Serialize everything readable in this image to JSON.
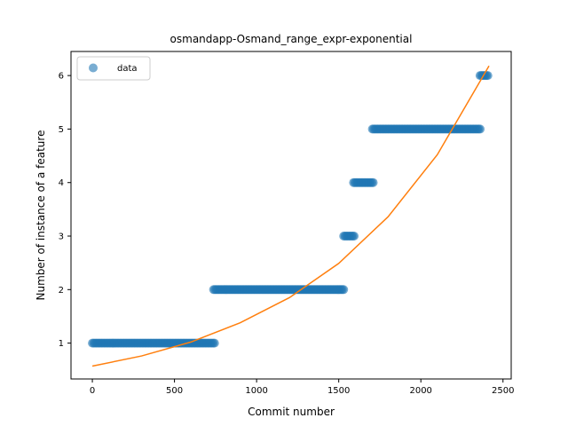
{
  "chart_data": {
    "type": "scatter",
    "title": "osmandapp-Osmand_range_expr-exponential",
    "xlabel": "Commit number",
    "ylabel": "Number of instance of a feature",
    "xlim": [
      -130,
      2550
    ],
    "ylim": [
      0.33,
      6.45
    ],
    "xticks": [
      0,
      500,
      1000,
      1500,
      2000,
      2500
    ],
    "yticks": [
      1,
      2,
      3,
      4,
      5,
      6
    ],
    "grid": false,
    "legend": {
      "entries": [
        "data"
      ],
      "placement": "top-left"
    },
    "colors": {
      "data": "#1f77b4",
      "fit": "#ff7f0e"
    },
    "series": [
      {
        "name": "data",
        "kind": "scatter",
        "segments": [
          {
            "x_start": 0,
            "x_end": 745,
            "y": 1
          },
          {
            "x_start": 738,
            "x_end": 1535,
            "y": 2
          },
          {
            "x_start": 1530,
            "x_end": 1595,
            "y": 3
          },
          {
            "x_start": 1590,
            "x_end": 1710,
            "y": 4
          },
          {
            "x_start": 1705,
            "x_end": 2365,
            "y": 5
          },
          {
            "x_start": 2360,
            "x_end": 2415,
            "y": 6
          }
        ]
      },
      {
        "kind": "line",
        "x": [
          0,
          300,
          600,
          900,
          1200,
          1500,
          1800,
          2100,
          2415
        ],
        "y": [
          0.57,
          0.76,
          1.02,
          1.38,
          1.85,
          2.49,
          3.36,
          4.52,
          6.18
        ]
      }
    ]
  }
}
